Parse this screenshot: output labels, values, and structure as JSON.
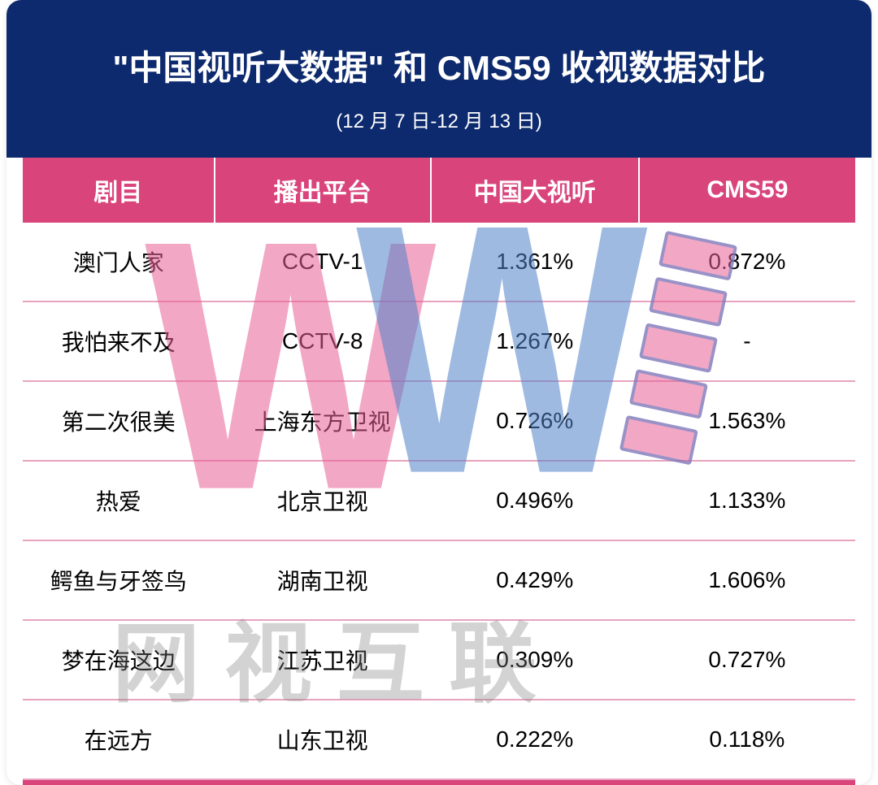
{
  "header": {
    "title": "\"中国视听大数据\" 和 CMS59 收视数据对比",
    "subtitle": "(12 月 7 日-12 月 13 日)"
  },
  "colors": {
    "header_bg": "#0d2a6e",
    "pink": "#d9447b",
    "row_border": "#e8a3bf",
    "text": "#000000",
    "title_text": "#ffffff",
    "wm_gray": "rgba(128,128,128,0.35)",
    "wm_pink": "rgba(232, 95, 150, 0.55)",
    "wm_blue": "rgba(80, 130, 200, 0.55)"
  },
  "table": {
    "columns": [
      "剧目",
      "播出平台",
      "中国大视听",
      "CMS59"
    ],
    "rows": [
      [
        "澳门人家",
        "CCTV-1",
        "1.361%",
        "0.872%"
      ],
      [
        "我怕来不及",
        "CCTV-8",
        "1.267%",
        "-"
      ],
      [
        "第二次很美",
        "上海东方卫视",
        "0.726%",
        "1.563%"
      ],
      [
        "热爱",
        "北京卫视",
        "0.496%",
        "1.133%"
      ],
      [
        "鳄鱼与牙签鸟",
        "湖南卫视",
        "0.429%",
        "1.606%"
      ],
      [
        "梦在海这边",
        "江苏卫视",
        "0.309%",
        "0.727%"
      ],
      [
        "在远方",
        "山东卫视",
        "0.222%",
        "0.118%"
      ]
    ]
  },
  "watermark": {
    "text": "网视互联",
    "letter": "W"
  }
}
